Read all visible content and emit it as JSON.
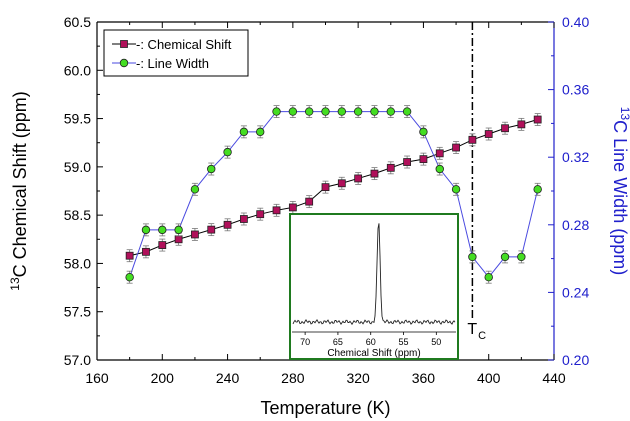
{
  "chart_data": {
    "type": "line",
    "xlabel": "Temperature (K)",
    "ylabel_left": {
      "sup": "13",
      "text": "C Chemical Shift (ppm)"
    },
    "ylabel_right": {
      "sup": "13",
      "text": "C Line Width (ppm)"
    },
    "xlim": [
      160,
      440
    ],
    "ylim_left": [
      57.0,
      60.5
    ],
    "ylim_right": [
      0.2,
      0.4
    ],
    "xticks": [
      "160",
      "200",
      "240",
      "280",
      "320",
      "360",
      "400",
      "440"
    ],
    "yticks_left": [
      "57.0",
      "57.5",
      "58.0",
      "58.5",
      "59.0",
      "59.5",
      "60.0",
      "60.5"
    ],
    "yticks_right": [
      "0.20",
      "0.24",
      "0.28",
      "0.32",
      "0.36",
      "0.40"
    ],
    "legend_position": "top-left",
    "colors": {
      "left_axis": "#000000",
      "right_axis": "#2020cc",
      "shift_marker": "#b0105a",
      "width_marker": "#44dd22",
      "width_line": "#4a4ae0",
      "inset_border": "#1f7a1f"
    },
    "series": [
      {
        "name": "-: Chemical Shift",
        "axis": "left",
        "marker": "square",
        "x": [
          180,
          190,
          200,
          210,
          220,
          230,
          240,
          250,
          260,
          270,
          280,
          290,
          300,
          310,
          320,
          330,
          340,
          350,
          360,
          370,
          380,
          390,
          400,
          410,
          420,
          430
        ],
        "y": [
          58.08,
          58.12,
          58.19,
          58.25,
          58.3,
          58.35,
          58.4,
          58.46,
          58.51,
          58.55,
          58.58,
          58.64,
          58.79,
          58.83,
          58.88,
          58.93,
          58.99,
          59.05,
          59.08,
          59.14,
          59.2,
          59.28,
          59.34,
          59.4,
          59.44,
          59.49
        ],
        "error": 0.05
      },
      {
        "name": "-: Line Width",
        "axis": "right",
        "marker": "circle",
        "x": [
          180,
          190,
          200,
          210,
          220,
          230,
          240,
          250,
          260,
          270,
          280,
          290,
          300,
          310,
          320,
          330,
          340,
          350,
          360,
          370,
          380,
          390,
          400,
          410,
          420,
          430
        ],
        "y": [
          0.249,
          0.277,
          0.277,
          0.277,
          0.301,
          0.313,
          0.323,
          0.335,
          0.335,
          0.347,
          0.347,
          0.347,
          0.347,
          0.347,
          0.347,
          0.347,
          0.347,
          0.347,
          0.335,
          0.313,
          0.301,
          0.261,
          0.249,
          0.261,
          0.261,
          0.301
        ],
        "error": 0.002
      }
    ],
    "transition": {
      "x": 390,
      "label": "T",
      "subscript": "C"
    },
    "inset": {
      "xlabel": "Chemical Shift (ppm)",
      "xlim": [
        72,
        47
      ],
      "xticks": [
        "70",
        "65",
        "60",
        "55",
        "50"
      ],
      "peak_ppm": 58.8
    }
  }
}
